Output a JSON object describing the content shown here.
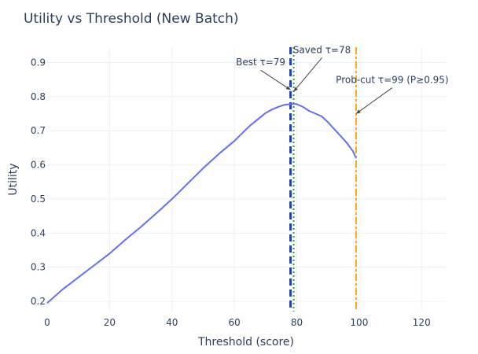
{
  "chart_data": {
    "type": "line",
    "title": "Utility vs Threshold (New Batch)",
    "xlabel": "Threshold (score)",
    "ylabel": "Utility",
    "xlim": [
      0,
      128
    ],
    "ylim": [
      0.17,
      0.945
    ],
    "x_ticks": [
      0,
      20,
      40,
      60,
      80,
      100,
      120
    ],
    "y_ticks": [
      0.2,
      0.3,
      0.4,
      0.5,
      0.6,
      0.7,
      0.8,
      0.9
    ],
    "grid": true,
    "series": [
      {
        "color": "#636efa",
        "x": [
          0,
          5,
          10,
          15,
          20,
          25,
          30,
          35,
          40,
          45,
          50,
          55,
          60,
          65,
          70,
          72,
          74,
          76,
          78,
          79,
          80,
          82,
          84,
          86,
          88,
          90,
          92,
          94,
          96,
          98,
          99
        ],
        "y": [
          0.195,
          0.235,
          0.27,
          0.305,
          0.34,
          0.38,
          0.418,
          0.458,
          0.5,
          0.545,
          0.59,
          0.632,
          0.67,
          0.715,
          0.752,
          0.762,
          0.77,
          0.776,
          0.778,
          0.779,
          0.778,
          0.77,
          0.758,
          0.75,
          0.742,
          0.725,
          0.705,
          0.685,
          0.665,
          0.64,
          0.62
        ]
      }
    ],
    "vlines": [
      {
        "x": 78,
        "color": "#1f3fbf",
        "dash": "dash"
      },
      {
        "x": 79,
        "color": "#2ca02c",
        "dash": "dot"
      },
      {
        "x": 99,
        "color": "#ffa500",
        "dash": "dashdot"
      }
    ],
    "annotations": [
      {
        "text": "Best τ=79",
        "x": 78,
        "y": 0.82,
        "arrow": true
      },
      {
        "text": "Saved τ=78",
        "x": 79,
        "y": 0.815,
        "arrow": true
      },
      {
        "text": "Prob-cut τ=99 (P≥0.95)",
        "x": 99,
        "y": 0.75,
        "arrow": true
      }
    ]
  }
}
